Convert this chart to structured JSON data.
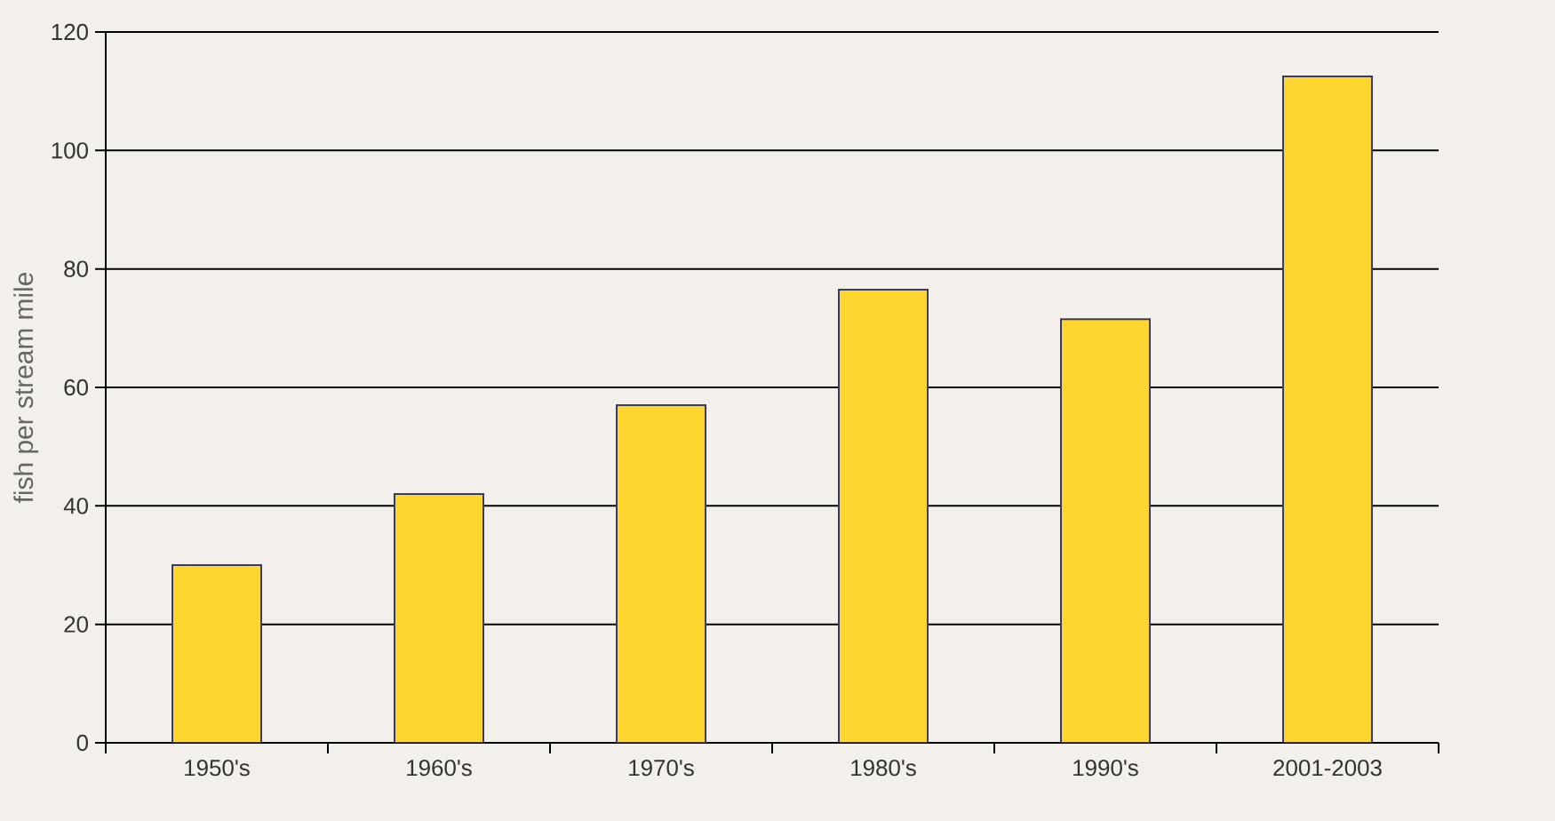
{
  "chart_data": {
    "type": "bar",
    "ylabel": "fish per stream mile",
    "categories": [
      "1950's",
      "1960's",
      "1970's",
      "1980's",
      "1990's",
      "2001-2003"
    ],
    "values": [
      30,
      42,
      57,
      76.5,
      71.5,
      112.5
    ],
    "color": "#ffd530",
    "ylim": [
      0,
      120
    ],
    "yticks": [
      0,
      20,
      40,
      60,
      80,
      100,
      120
    ],
    "grid": "y"
  }
}
